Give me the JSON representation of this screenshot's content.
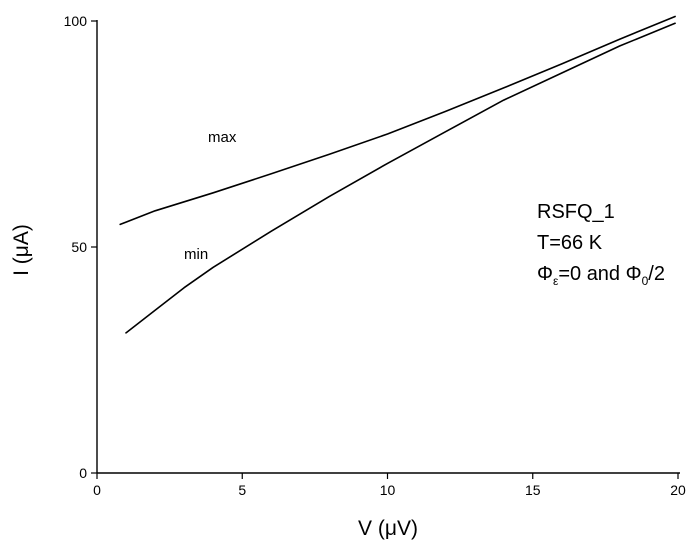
{
  "chart_data": {
    "type": "line",
    "title": "",
    "xlabel": "V (μV)",
    "ylabel": "I (μA)",
    "xlim": [
      0,
      20
    ],
    "ylim": [
      0,
      100
    ],
    "x_ticks": [
      0,
      5,
      10,
      15,
      20
    ],
    "x_tick_labels": [
      "0",
      "5",
      "10",
      "15",
      "20"
    ],
    "y_ticks": [
      0,
      50,
      100
    ],
    "y_tick_labels": [
      "0",
      "50",
      "100"
    ],
    "grid": false,
    "legend": "none",
    "series": [
      {
        "name": "max",
        "x": [
          0.8,
          2,
          4,
          6,
          8,
          10,
          12,
          14,
          16,
          18,
          19.9
        ],
        "y": [
          55,
          58,
          62,
          66.2,
          70.5,
          75,
          80,
          85.2,
          90.5,
          96,
          101
        ]
      },
      {
        "name": "min",
        "x": [
          1,
          2,
          3,
          4,
          6,
          8,
          10,
          12,
          14,
          16,
          18,
          19.9
        ],
        "y": [
          31,
          36,
          41,
          45.5,
          53.5,
          61.2,
          68.5,
          75.5,
          82.5,
          88.5,
          94.5,
          99.5
        ]
      }
    ],
    "annotations": {
      "line1": "RSFQ_1",
      "line2": "T=66 K",
      "line3": {
        "phi1": "Φ",
        "sub1": "ε",
        "mid": "=0 and Φ",
        "sub2": "0",
        "end": "/2"
      }
    }
  }
}
